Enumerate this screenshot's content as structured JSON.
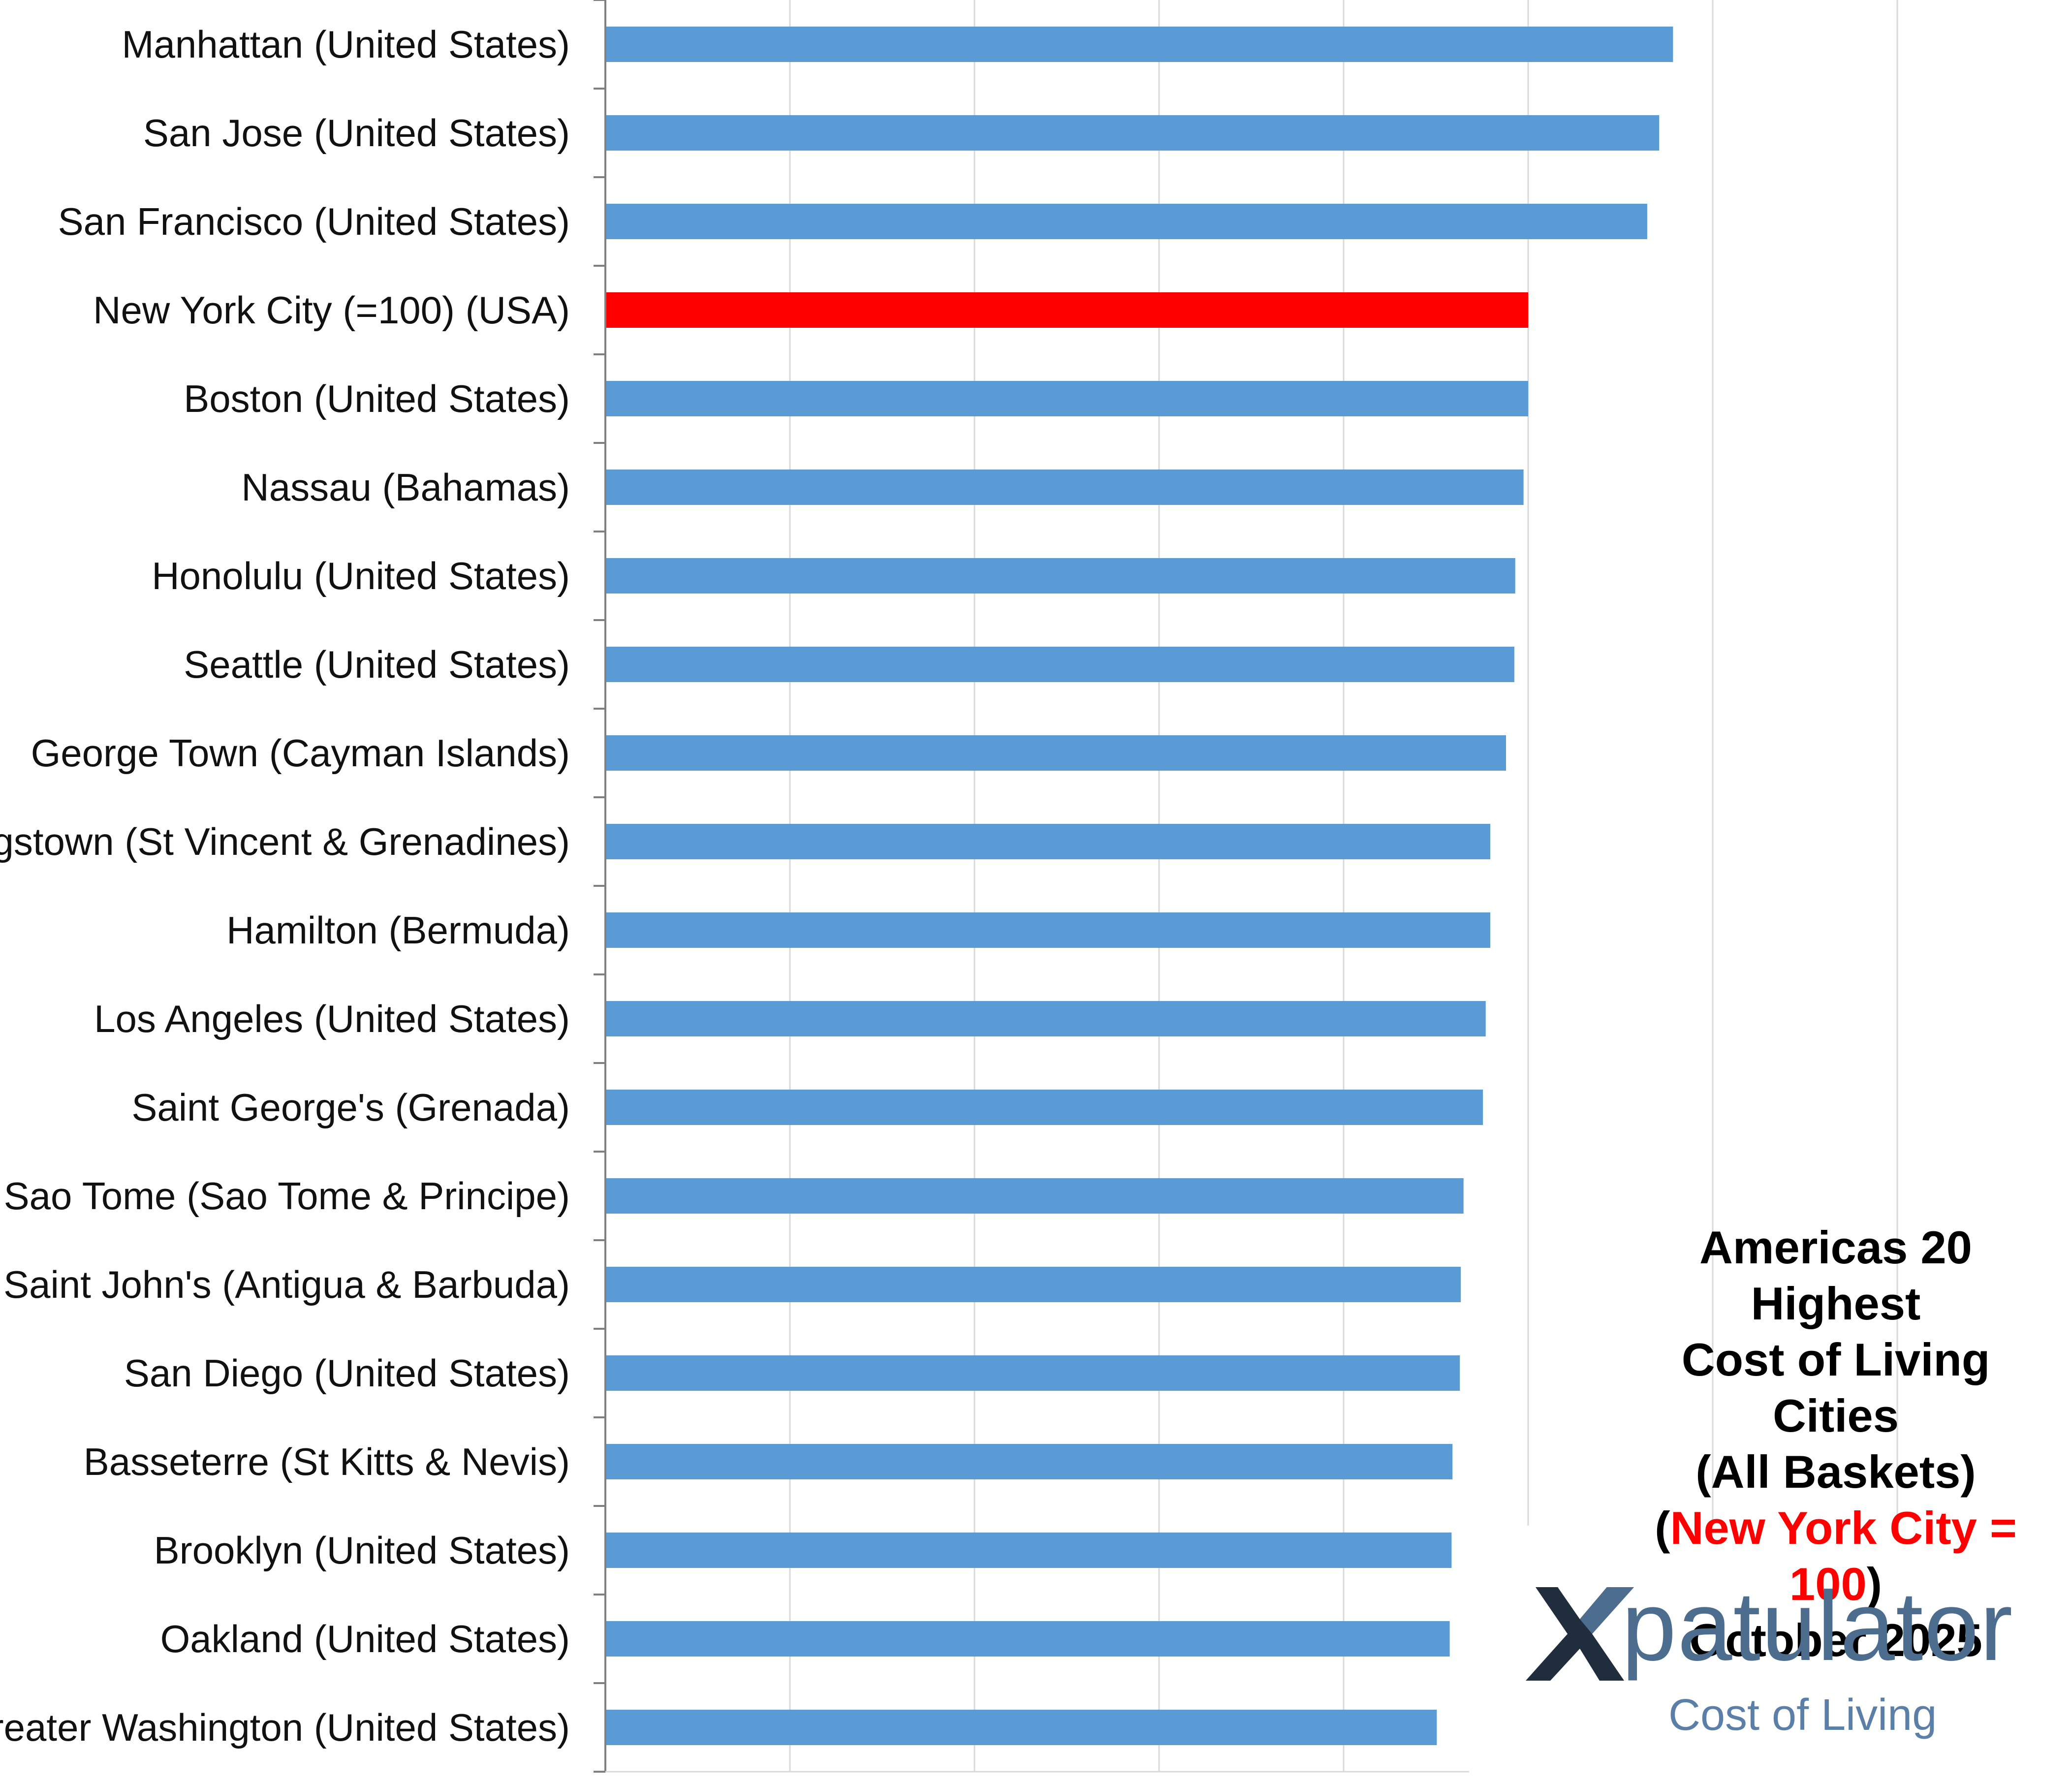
{
  "chart_data": {
    "type": "bar",
    "orientation": "horizontal",
    "categories": [
      "Manhattan (United States)",
      "San Jose (United States)",
      "San Francisco (United States)",
      "New York City (=100) (USA)",
      "Boston (United States)",
      "Nassau (Bahamas)",
      "Honolulu (United States)",
      "Seattle (United States)",
      "George Town (Cayman Islands)",
      "Kingstown (St Vincent & Grenadines)",
      "Hamilton (Bermuda)",
      "Los Angeles (United States)",
      "Saint George's (Grenada)",
      "Sao Tome (Sao Tome & Principe)",
      "Saint John's (Antigua & Barbuda)",
      "San Diego (United States)",
      "Basseterre (St Kitts & Nevis)",
      "Brooklyn (United States)",
      "Oakland (United States)",
      "Greater Washington (United States)"
    ],
    "values": [
      115.7,
      114.2,
      112.9,
      100,
      100,
      99.5,
      98.6,
      98.5,
      97.6,
      95.9,
      95.9,
      95.4,
      95.1,
      93.0,
      92.7,
      92.6,
      91.8,
      91.7,
      91.5,
      90.1
    ],
    "highlight_category": "New York City (=100) (USA)",
    "colors": {
      "bar": "#5b9bd5",
      "highlight": "#ff0000",
      "grid": "#d9d9d9",
      "axis": "#808080"
    },
    "xlim": [
      0,
      140
    ],
    "x_gridline_step": 20,
    "grid": true,
    "x_tick_labels_shown": false,
    "title_lines": [
      "Americas 20 Highest",
      "Cost of Living Cities",
      "(All Baskets)"
    ],
    "title_highlight": "New York City = 100",
    "subtitle": "October 2025"
  },
  "logo": {
    "name": "Xpatulator",
    "word": "patulator",
    "tagline": "Cost of Living",
    "colors": {
      "x_dark": "#1f2d3d",
      "x_blue": "#4d6d8e",
      "text": "#4d6d8e"
    }
  }
}
